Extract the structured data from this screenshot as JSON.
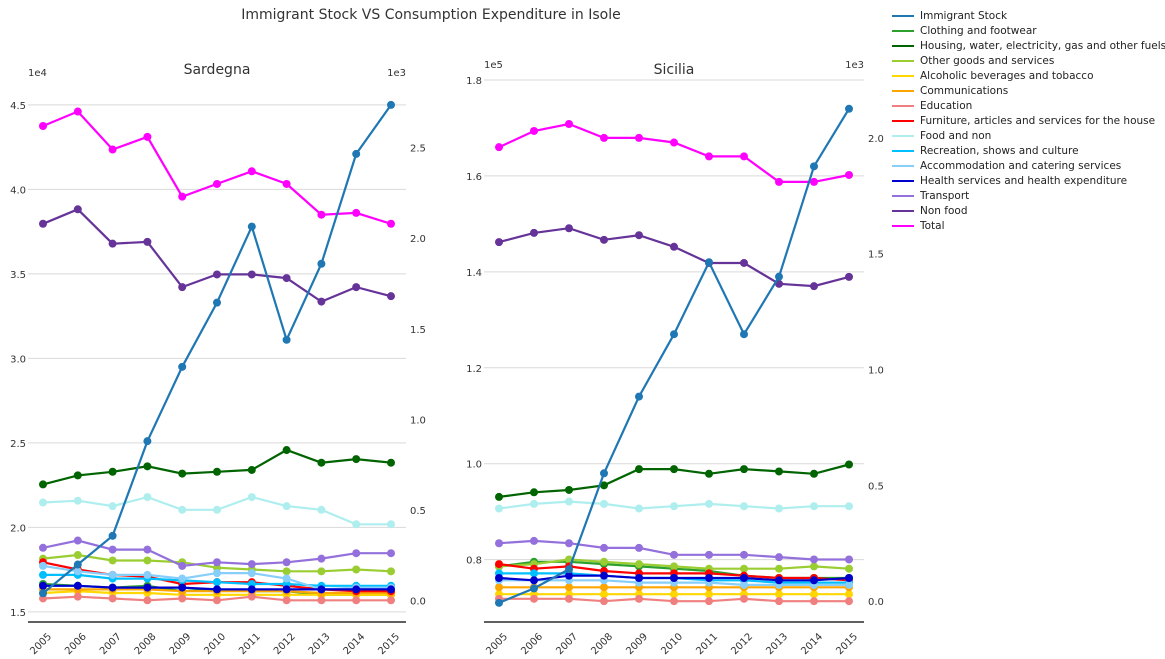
{
  "title": "Immigrant Stock VS Consumption Expenditure in Isole",
  "legend": [
    {
      "name": "Immigrant Stock",
      "color": "#1f77b4"
    },
    {
      "name": "Clothing and footwear",
      "color": "#2ca02c"
    },
    {
      "name": "Housing, water, electricity, gas and other fuels",
      "color": "#006400"
    },
    {
      "name": "Other goods and services",
      "color": "#9acd32"
    },
    {
      "name": "Alcoholic beverages and tobacco",
      "color": "#ffd700"
    },
    {
      "name": "Communications",
      "color": "#ffa500"
    },
    {
      "name": "Education",
      "color": "#f08080"
    },
    {
      "name": "Furniture, articles and services for the house",
      "color": "#ff0000"
    },
    {
      "name": "Food and non",
      "color": "#afeeee"
    },
    {
      "name": "Recreation, shows and culture",
      "color": "#00bfff"
    },
    {
      "name": "Accommodation and catering services",
      "color": "#87cefa"
    },
    {
      "name": "Health services and health expenditure",
      "color": "#0000cd"
    },
    {
      "name": "Transport",
      "color": "#9370db"
    },
    {
      "name": "Non food",
      "color": "#663399"
    },
    {
      "name": "Total",
      "color": "#ff00ff"
    }
  ],
  "chart_data": [
    {
      "type": "line",
      "title": "Sardegna",
      "x": [
        "2005",
        "2006",
        "2007",
        "2008",
        "2009",
        "2010",
        "2011",
        "2012",
        "2013",
        "2014",
        "2015"
      ],
      "left_axis": {
        "multiplier": "1e4",
        "ylim": [
          1.44,
          4.6
        ],
        "ticks": [
          "1.5",
          "2.0",
          "2.5",
          "3.0",
          "3.5",
          "4.0",
          "4.5"
        ]
      },
      "right_axis": {
        "multiplier": "1e3",
        "ylim": [
          -0.12,
          2.83
        ],
        "ticks": [
          "0.0",
          "0.5",
          "1.0",
          "1.5",
          "2.0",
          "2.5"
        ]
      },
      "series": [
        {
          "name": "Immigrant Stock",
          "axis": "left",
          "values": [
            1.61,
            1.78,
            1.95,
            2.51,
            2.95,
            3.33,
            3.78,
            3.11,
            3.56,
            4.21,
            4.5
          ]
        },
        {
          "name": "Clothing and footwear",
          "axis": "right",
          "values": [
            0.09,
            0.08,
            0.07,
            0.08,
            0.05,
            0.06,
            0.05,
            0.05,
            0.03,
            0.03,
            0.03
          ]
        },
        {
          "name": "Housing, water, electricity, gas and other fuels",
          "axis": "right",
          "values": [
            0.64,
            0.69,
            0.71,
            0.74,
            0.7,
            0.71,
            0.72,
            0.83,
            0.76,
            0.78,
            0.76
          ]
        },
        {
          "name": "Other goods and services",
          "axis": "right",
          "values": [
            0.23,
            0.25,
            0.22,
            0.22,
            0.21,
            0.18,
            0.17,
            0.16,
            0.16,
            0.17,
            0.16
          ]
        },
        {
          "name": "Alcoholic beverages and tobacco",
          "axis": "right",
          "values": [
            0.04,
            0.05,
            0.04,
            0.04,
            0.03,
            0.03,
            0.03,
            0.03,
            0.03,
            0.03,
            0.03
          ]
        },
        {
          "name": "Communications",
          "axis": "right",
          "values": [
            0.06,
            0.06,
            0.06,
            0.06,
            0.05,
            0.05,
            0.05,
            0.05,
            0.04,
            0.04,
            0.04
          ]
        },
        {
          "name": "Education",
          "axis": "right",
          "values": [
            0.01,
            0.02,
            0.01,
            0.0,
            0.01,
            0.0,
            0.02,
            0.0,
            0.0,
            0.0,
            0.0
          ]
        },
        {
          "name": "Furniture, articles and services for the house",
          "axis": "right",
          "values": [
            0.21,
            0.17,
            0.14,
            0.13,
            0.09,
            0.1,
            0.1,
            0.08,
            0.06,
            0.05,
            0.05
          ]
        },
        {
          "name": "Food and non",
          "axis": "right",
          "values": [
            0.54,
            0.55,
            0.52,
            0.57,
            0.5,
            0.5,
            0.57,
            0.52,
            0.5,
            0.42,
            0.42
          ]
        },
        {
          "name": "Recreation, shows and culture",
          "axis": "right",
          "values": [
            0.14,
            0.14,
            0.12,
            0.12,
            0.11,
            0.1,
            0.09,
            0.09,
            0.08,
            0.08,
            0.08
          ]
        },
        {
          "name": "Accommodation and catering services",
          "axis": "right",
          "values": [
            0.19,
            0.16,
            0.14,
            0.14,
            0.12,
            0.15,
            0.15,
            0.12,
            0.06,
            0.07,
            0.07
          ]
        },
        {
          "name": "Health services and health expenditure",
          "axis": "right",
          "values": [
            0.08,
            0.08,
            0.07,
            0.07,
            0.07,
            0.06,
            0.06,
            0.06,
            0.06,
            0.06,
            0.06
          ]
        },
        {
          "name": "Transport",
          "axis": "right",
          "values": [
            0.29,
            0.33,
            0.28,
            0.28,
            0.19,
            0.21,
            0.2,
            0.21,
            0.23,
            0.26,
            0.26
          ]
        },
        {
          "name": "Non food",
          "axis": "right",
          "values": [
            2.08,
            2.16,
            1.97,
            1.98,
            1.73,
            1.8,
            1.8,
            1.78,
            1.65,
            1.73,
            1.68
          ]
        },
        {
          "name": "Total",
          "axis": "right",
          "values": [
            2.62,
            2.7,
            2.49,
            2.56,
            2.23,
            2.3,
            2.37,
            2.3,
            2.13,
            2.14,
            2.08
          ]
        }
      ]
    },
    {
      "type": "line",
      "title": "Sicilia",
      "x": [
        "2005",
        "2006",
        "2007",
        "2008",
        "2009",
        "2010",
        "2011",
        "2012",
        "2013",
        "2014",
        "2015"
      ],
      "left_axis": {
        "multiplier": "1e5",
        "ylim": [
          0.67,
          1.8
        ],
        "ticks": [
          "0.8",
          "1.0",
          "1.2",
          "1.4",
          "1.6",
          "1.8"
        ]
      },
      "right_axis": {
        "multiplier": "1e3",
        "ylim": [
          -0.09,
          2.25
        ],
        "ticks": [
          "0.0",
          "0.5",
          "1.0",
          "1.5",
          "2.0"
        ]
      },
      "series": [
        {
          "name": "Immigrant Stock",
          "axis": "left",
          "values": [
            0.71,
            0.74,
            0.78,
            0.98,
            1.14,
            1.27,
            1.42,
            1.27,
            1.39,
            1.62,
            1.74
          ]
        },
        {
          "name": "Clothing and footwear",
          "axis": "right",
          "values": [
            0.15,
            0.17,
            0.17,
            0.16,
            0.15,
            0.14,
            0.13,
            0.11,
            0.1,
            0.1,
            0.1
          ]
        },
        {
          "name": "Housing, water, electricity, gas and other fuels",
          "axis": "right",
          "values": [
            0.45,
            0.47,
            0.48,
            0.5,
            0.57,
            0.57,
            0.55,
            0.57,
            0.56,
            0.55,
            0.59
          ]
        },
        {
          "name": "Other goods and services",
          "axis": "right",
          "values": [
            0.15,
            0.16,
            0.18,
            0.17,
            0.16,
            0.15,
            0.14,
            0.14,
            0.14,
            0.15,
            0.14
          ]
        },
        {
          "name": "Alcoholic beverages and tobacco",
          "axis": "right",
          "values": [
            0.03,
            0.03,
            0.03,
            0.03,
            0.03,
            0.03,
            0.03,
            0.03,
            0.03,
            0.03,
            0.03
          ]
        },
        {
          "name": "Communications",
          "axis": "right",
          "values": [
            0.06,
            0.06,
            0.06,
            0.06,
            0.06,
            0.06,
            0.06,
            0.06,
            0.06,
            0.06,
            0.06
          ]
        },
        {
          "name": "Education",
          "axis": "right",
          "values": [
            0.01,
            0.01,
            0.01,
            0.0,
            0.01,
            0.0,
            0.0,
            0.01,
            0.0,
            0.0,
            0.0
          ]
        },
        {
          "name": "Furniture, articles and services for the house",
          "axis": "right",
          "values": [
            0.16,
            0.14,
            0.15,
            0.13,
            0.12,
            0.12,
            0.12,
            0.11,
            0.1,
            0.1,
            0.09
          ]
        },
        {
          "name": "Food and non",
          "axis": "right",
          "values": [
            0.4,
            0.42,
            0.43,
            0.42,
            0.4,
            0.41,
            0.42,
            0.41,
            0.4,
            0.41,
            0.41
          ]
        },
        {
          "name": "Recreation, shows and culture",
          "axis": "right",
          "values": [
            0.12,
            0.12,
            0.12,
            0.11,
            0.1,
            0.1,
            0.09,
            0.09,
            0.08,
            0.08,
            0.08
          ]
        },
        {
          "name": "Accommodation and catering services",
          "axis": "right",
          "values": [
            0.09,
            0.09,
            0.09,
            0.09,
            0.08,
            0.08,
            0.08,
            0.07,
            0.07,
            0.07,
            0.07
          ]
        },
        {
          "name": "Health services and health expenditure",
          "axis": "right",
          "values": [
            0.1,
            0.09,
            0.11,
            0.11,
            0.1,
            0.1,
            0.1,
            0.1,
            0.09,
            0.09,
            0.1
          ]
        },
        {
          "name": "Transport",
          "axis": "right",
          "values": [
            0.25,
            0.26,
            0.25,
            0.23,
            0.23,
            0.2,
            0.2,
            0.2,
            0.19,
            0.18,
            0.18
          ]
        },
        {
          "name": "Non food",
          "axis": "right",
          "values": [
            1.55,
            1.59,
            1.61,
            1.56,
            1.58,
            1.53,
            1.46,
            1.46,
            1.37,
            1.36,
            1.4
          ]
        },
        {
          "name": "Total",
          "axis": "right",
          "values": [
            1.96,
            2.03,
            2.06,
            2.0,
            2.0,
            1.98,
            1.92,
            1.92,
            1.81,
            1.81,
            1.84
          ]
        }
      ]
    }
  ]
}
